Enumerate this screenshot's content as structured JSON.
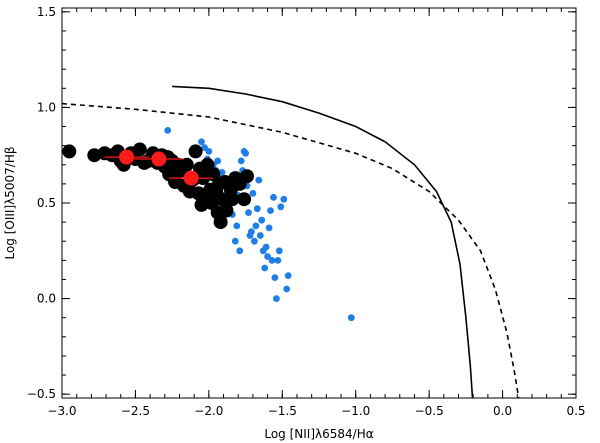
{
  "chart_data": {
    "type": "scatter",
    "title": "",
    "xlabel": "Log [NII]λ6584/Hα",
    "ylabel": "Log [OIII]λ5007/Hβ",
    "xlim": [
      -3.0,
      0.5
    ],
    "ylim": [
      -0.52,
      1.52
    ],
    "grid": false,
    "x_ticks": [
      -3.0,
      -2.5,
      -2.0,
      -1.5,
      -1.0,
      -0.5,
      0.0,
      0.5
    ],
    "x_tick_labels": [
      "−3.0",
      "−2.5",
      "−2.0",
      "−1.5",
      "−1.0",
      "−0.5",
      "0.0",
      "0.5"
    ],
    "y_ticks": [
      -0.5,
      0.0,
      0.5,
      1.0,
      1.5
    ],
    "y_tick_labels": [
      "−0.5",
      "0.0",
      "0.5",
      "1.0",
      "1.5"
    ],
    "series": [
      {
        "name": "Blue points",
        "color": "#1f7fe6",
        "marker": "small-dot",
        "points": [
          [
            -2.28,
            0.88
          ],
          [
            -2.27,
            0.63
          ],
          [
            -2.22,
            0.67
          ],
          [
            -2.05,
            0.82
          ],
          [
            -2.03,
            0.79
          ],
          [
            -2.01,
            0.73
          ],
          [
            -2.0,
            0.77
          ],
          [
            -1.97,
            0.7
          ],
          [
            -1.95,
            0.67
          ],
          [
            -1.94,
            0.72
          ],
          [
            -1.93,
            0.63
          ],
          [
            -1.92,
            0.58
          ],
          [
            -1.91,
            0.66
          ],
          [
            -1.9,
            0.53
          ],
          [
            -1.88,
            0.61
          ],
          [
            -1.86,
            0.49
          ],
          [
            -1.85,
            0.57
          ],
          [
            -1.84,
            0.44
          ],
          [
            -1.83,
            0.52
          ],
          [
            -1.83,
            0.63
          ],
          [
            -1.82,
            0.3
          ],
          [
            -1.81,
            0.38
          ],
          [
            -1.8,
            0.54
          ],
          [
            -1.79,
            0.25
          ],
          [
            -1.78,
            0.72
          ],
          [
            -1.77,
            0.67
          ],
          [
            -1.76,
            0.77
          ],
          [
            -1.75,
            0.76
          ],
          [
            -1.74,
            0.59
          ],
          [
            -1.73,
            0.45
          ],
          [
            -1.72,
            0.33
          ],
          [
            -1.71,
            0.35
          ],
          [
            -1.7,
            0.55
          ],
          [
            -1.69,
            0.3
          ],
          [
            -1.68,
            0.38
          ],
          [
            -1.67,
            0.47
          ],
          [
            -1.66,
            0.62
          ],
          [
            -1.65,
            0.33
          ],
          [
            -1.64,
            0.41
          ],
          [
            -1.63,
            0.25
          ],
          [
            -1.62,
            0.16
          ],
          [
            -1.61,
            0.27
          ],
          [
            -1.6,
            0.22
          ],
          [
            -1.59,
            0.37
          ],
          [
            -1.58,
            0.46
          ],
          [
            -1.57,
            0.2
          ],
          [
            -1.56,
            0.53
          ],
          [
            -1.55,
            0.11
          ],
          [
            -1.54,
            0.0
          ],
          [
            -1.53,
            0.2
          ],
          [
            -1.52,
            0.25
          ],
          [
            -1.51,
            0.48
          ],
          [
            -1.49,
            0.52
          ],
          [
            -1.47,
            0.05
          ],
          [
            -1.46,
            0.12
          ],
          [
            -1.03,
            -0.1
          ]
        ]
      },
      {
        "name": "Black points",
        "color": "#000000",
        "marker": "large-dot",
        "points": [
          [
            -2.95,
            0.77
          ],
          [
            -2.78,
            0.75
          ],
          [
            -2.71,
            0.76
          ],
          [
            -2.66,
            0.75
          ],
          [
            -2.62,
            0.77
          ],
          [
            -2.6,
            0.72
          ],
          [
            -2.58,
            0.7
          ],
          [
            -2.56,
            0.74
          ],
          [
            -2.53,
            0.76
          ],
          [
            -2.5,
            0.73
          ],
          [
            -2.47,
            0.78
          ],
          [
            -2.44,
            0.71
          ],
          [
            -2.41,
            0.72
          ],
          [
            -2.38,
            0.76
          ],
          [
            -2.35,
            0.71
          ],
          [
            -2.32,
            0.75
          ],
          [
            -2.3,
            0.69
          ],
          [
            -2.28,
            0.74
          ],
          [
            -2.27,
            0.65
          ],
          [
            -2.25,
            0.72
          ],
          [
            -2.23,
            0.61
          ],
          [
            -2.21,
            0.7
          ],
          [
            -2.19,
            0.67
          ],
          [
            -2.17,
            0.59
          ],
          [
            -2.15,
            0.7
          ],
          [
            -2.13,
            0.56
          ],
          [
            -2.11,
            0.62
          ],
          [
            -2.09,
            0.77
          ],
          [
            -2.07,
            0.55
          ],
          [
            -2.06,
            0.68
          ],
          [
            -2.05,
            0.49
          ],
          [
            -2.04,
            0.63
          ],
          [
            -2.02,
            0.53
          ],
          [
            -2.01,
            0.7
          ],
          [
            -1.99,
            0.57
          ],
          [
            -1.98,
            0.5
          ],
          [
            -1.97,
            0.65
          ],
          [
            -1.95,
            0.56
          ],
          [
            -1.94,
            0.45
          ],
          [
            -1.93,
            0.6
          ],
          [
            -1.92,
            0.4
          ],
          [
            -1.91,
            0.52
          ],
          [
            -1.89,
            0.61
          ],
          [
            -1.88,
            0.46
          ],
          [
            -1.85,
            0.57
          ],
          [
            -1.84,
            0.52
          ],
          [
            -1.82,
            0.63
          ],
          [
            -1.79,
            0.6
          ],
          [
            -1.76,
            0.52
          ],
          [
            -1.74,
            0.64
          ]
        ]
      },
      {
        "name": "Red points",
        "color": "#ff1a1a",
        "marker": "large-dot-errorbar",
        "points": [
          [
            -2.56,
            0.74
          ],
          [
            -2.34,
            0.73
          ],
          [
            -2.12,
            0.63
          ]
        ],
        "xerr": [
          0.15,
          0.17,
          0.15
        ]
      }
    ],
    "curves": [
      {
        "name": "Solid curve",
        "style": "solid",
        "points": [
          [
            -2.25,
            1.11
          ],
          [
            -2.0,
            1.1
          ],
          [
            -1.75,
            1.07
          ],
          [
            -1.5,
            1.03
          ],
          [
            -1.25,
            0.97
          ],
          [
            -1.0,
            0.9
          ],
          [
            -0.8,
            0.82
          ],
          [
            -0.6,
            0.7
          ],
          [
            -0.45,
            0.56
          ],
          [
            -0.35,
            0.4
          ],
          [
            -0.29,
            0.18
          ],
          [
            -0.25,
            -0.1
          ],
          [
            -0.22,
            -0.35
          ],
          [
            -0.205,
            -0.52
          ]
        ]
      },
      {
        "name": "Dashed curve",
        "style": "dashed",
        "points": [
          [
            -3.0,
            1.02
          ],
          [
            -2.5,
            0.99
          ],
          [
            -2.0,
            0.95
          ],
          [
            -1.5,
            0.87
          ],
          [
            -1.0,
            0.76
          ],
          [
            -0.75,
            0.68
          ],
          [
            -0.5,
            0.56
          ],
          [
            -0.3,
            0.41
          ],
          [
            -0.15,
            0.25
          ],
          [
            -0.05,
            0.05
          ],
          [
            0.03,
            -0.18
          ],
          [
            0.08,
            -0.38
          ],
          [
            0.11,
            -0.52
          ]
        ]
      }
    ]
  }
}
